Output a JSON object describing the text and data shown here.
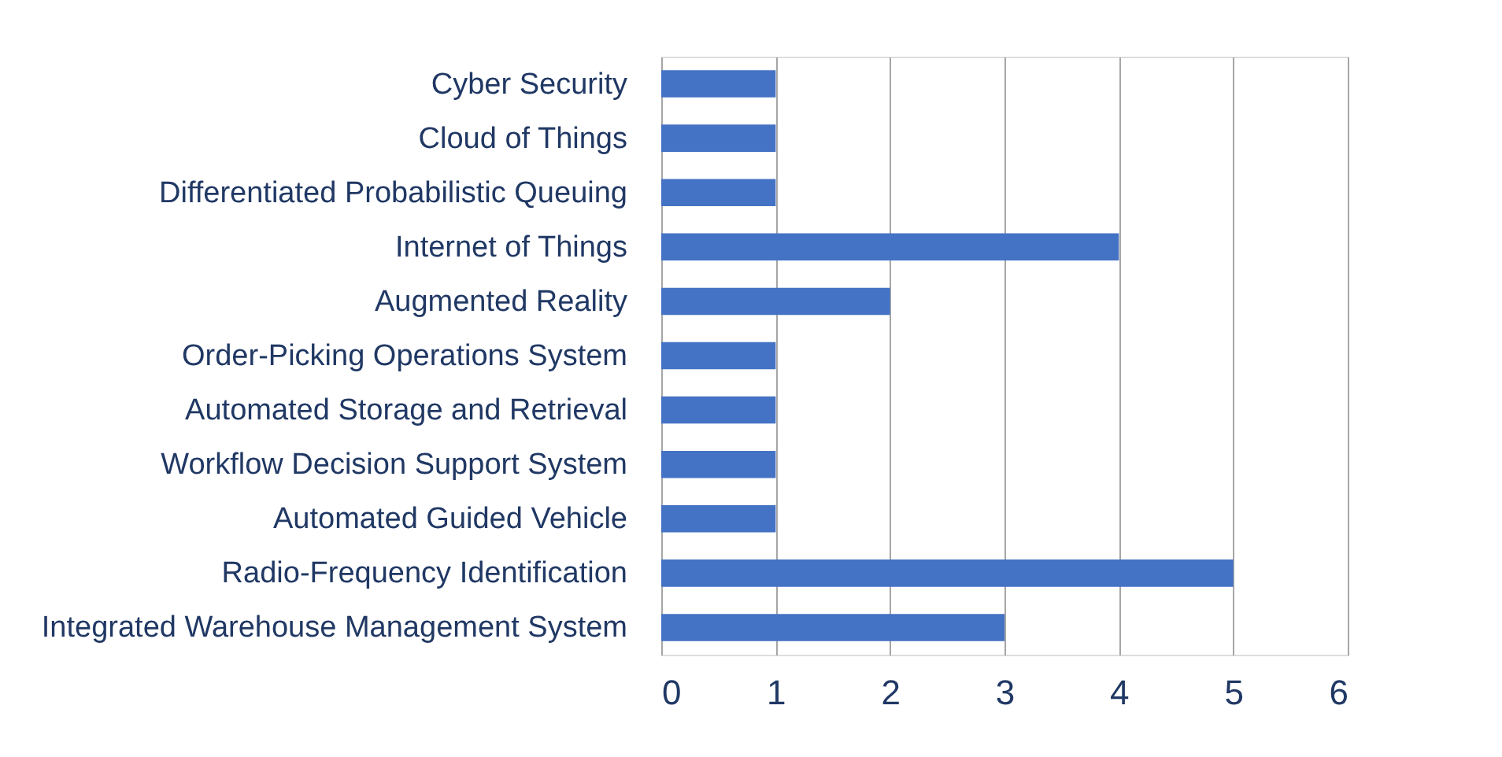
{
  "chart_data": {
    "type": "bar",
    "orientation": "horizontal",
    "categories": [
      "Cyber Security",
      "Cloud of Things",
      "Differentiated Probabilistic Queuing",
      "Internet of Things",
      "Augmented Reality",
      "Order-Picking Operations System",
      "Automated Storage and Retrieval",
      "Workflow Decision Support System",
      "Automated Guided Vehicle",
      "Radio-Frequency Identification",
      "Integrated Warehouse Management System"
    ],
    "values": [
      1,
      1,
      1,
      4,
      2,
      1,
      1,
      1,
      1,
      5,
      3
    ],
    "color": "#4472c4",
    "xlim": [
      0,
      6
    ],
    "xticks": [
      0,
      1,
      2,
      3,
      4,
      5,
      6
    ],
    "grid": "x"
  }
}
